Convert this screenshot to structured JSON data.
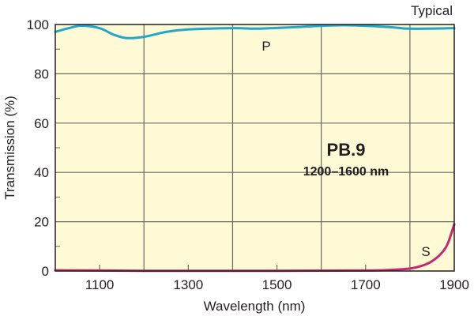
{
  "chart_data": {
    "type": "line",
    "corner_note": "Typical",
    "title": "PB.9",
    "subtitle": "1200–1600 nm",
    "xlabel": "Wavelength (nm)",
    "ylabel": "Transmission (%)",
    "xlim": [
      1000,
      1900
    ],
    "ylim": [
      0,
      100
    ],
    "xticks": [
      1100,
      1300,
      1500,
      1700,
      1900
    ],
    "yticks": [
      0,
      20,
      40,
      60,
      80,
      100
    ],
    "x_gridlines": [
      1200,
      1400,
      1600,
      1800
    ],
    "y_gridlines": [
      20,
      40,
      60,
      80
    ],
    "grid": true,
    "background": "#fefad6",
    "series": [
      {
        "name": "P",
        "color": "#22a7c8",
        "x": [
          1000,
          1030,
          1060,
          1100,
          1130,
          1160,
          1200,
          1250,
          1300,
          1400,
          1450,
          1500,
          1550,
          1650,
          1750,
          1800,
          1900
        ],
        "y": [
          97,
          98.5,
          99.5,
          98.5,
          96,
          94.5,
          95,
          97,
          98,
          98.5,
          98.3,
          98.6,
          99,
          99.7,
          99,
          98.3,
          98.5
        ]
      },
      {
        "name": "S",
        "color": "#c8286e",
        "x": [
          1000,
          1200,
          1500,
          1700,
          1760,
          1800,
          1830,
          1850,
          1870,
          1885,
          1900
        ],
        "y": [
          0.3,
          0.1,
          0.1,
          0.2,
          0.5,
          1.0,
          2.3,
          4,
          7,
          11,
          19
        ]
      }
    ]
  }
}
